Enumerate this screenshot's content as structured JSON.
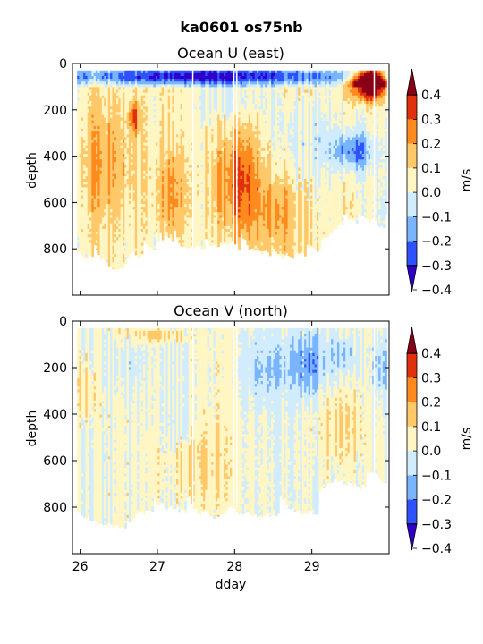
{
  "figure_title": "ka0601 os75nb",
  "colors": {
    "levels": [
      "#2f00c8",
      "#2f52ff",
      "#79b4ff",
      "#d2ecff",
      "#fff6c4",
      "#ffc96a",
      "#ff8a1e",
      "#e0300e",
      "#8a0016"
    ],
    "background": "#ffffff"
  },
  "chart_data": [
    {
      "type": "heatmap",
      "title": "Ocean U (east)",
      "xlabel": "",
      "ylabel": "depth",
      "xlim": [
        25.9,
        30.0
      ],
      "ylim": [
        1000,
        0
      ],
      "xticks": [
        26,
        27,
        28,
        29
      ],
      "xtick_labels": [
        "",
        "",
        "",
        ""
      ],
      "yticks": [
        0,
        200,
        400,
        600,
        800
      ],
      "yticks_labels": [
        "0",
        "200",
        "400",
        "600",
        "800"
      ],
      "colorbar": {
        "label": "m/s",
        "ticks": [
          0.4,
          0.3,
          0.2,
          0.1,
          0.0,
          -0.1,
          -0.2,
          -0.3,
          -0.4
        ],
        "tick_labels": [
          "0.4",
          "0.3",
          "0.2",
          "0.1",
          "0.0",
          "−0.1",
          "−0.2",
          "−0.3",
          "−0.4"
        ],
        "range": [
          -0.4,
          0.4
        ]
      },
      "grid": false
    },
    {
      "type": "heatmap",
      "title": "Ocean V (north)",
      "xlabel": "dday",
      "ylabel": "depth",
      "xlim": [
        25.9,
        30.0
      ],
      "ylim": [
        1000,
        0
      ],
      "xticks": [
        26,
        27,
        28,
        29
      ],
      "xtick_labels": [
        "26",
        "27",
        "28",
        "29"
      ],
      "yticks": [
        0,
        200,
        400,
        600,
        800
      ],
      "yticks_labels": [
        "0",
        "200",
        "400",
        "600",
        "800"
      ],
      "colorbar": {
        "label": "m/s",
        "ticks": [
          0.4,
          0.3,
          0.2,
          0.1,
          0.0,
          -0.1,
          -0.2,
          -0.3,
          -0.4
        ],
        "tick_labels": [
          "0.4",
          "0.3",
          "0.2",
          "0.1",
          "0.0",
          "−0.1",
          "−0.2",
          "−0.3",
          "−0.4"
        ],
        "range": [
          -0.4,
          0.4
        ]
      },
      "grid": false
    }
  ]
}
